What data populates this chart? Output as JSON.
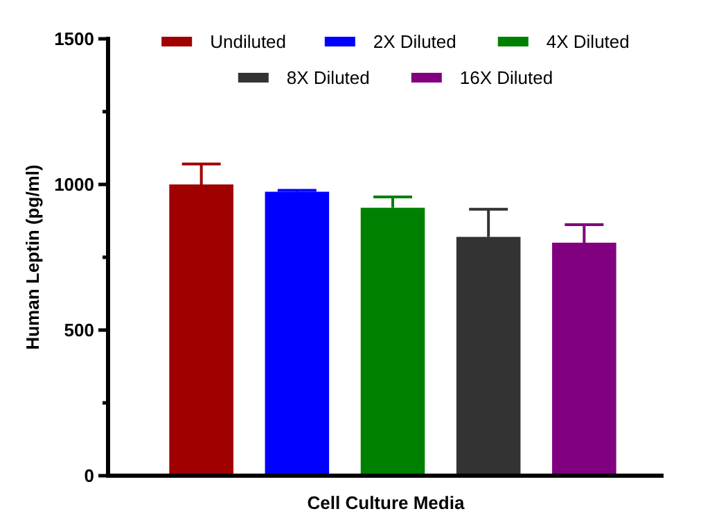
{
  "chart_data": {
    "type": "bar",
    "xlabel": "Cell Culture Media",
    "ylabel": "Human Leptin (pg/ml)",
    "categories": [
      null
    ],
    "series": [
      {
        "name": "Undiluted",
        "color": "#a00000",
        "values": [
          1000
        ],
        "errors": [
          [
            1000,
            1070
          ]
        ]
      },
      {
        "name": "2X Diluted",
        "color": "#0000ff",
        "values": [
          975
        ],
        "errors": [
          [
            975,
            980
          ]
        ]
      },
      {
        "name": "4X Diluted",
        "color": "#008000",
        "values": [
          920
        ],
        "errors": [
          [
            920,
            957
          ]
        ]
      },
      {
        "name": "8X Diluted",
        "color": "#333333",
        "values": [
          820
        ],
        "errors": [
          [
            820,
            915
          ]
        ]
      },
      {
        "name": "16X Diluted",
        "color": "#800080",
        "values": [
          800
        ],
        "errors": [
          [
            800,
            862
          ]
        ]
      }
    ],
    "ylim": [
      0,
      1500
    ],
    "yticks": [
      0,
      {
        "value": 250,
        "label": null
      },
      500,
      {
        "value": 750,
        "label": null
      },
      1000,
      {
        "value": 1250,
        "label": null
      },
      1500
    ],
    "legend": "top",
    "grid": false
  }
}
